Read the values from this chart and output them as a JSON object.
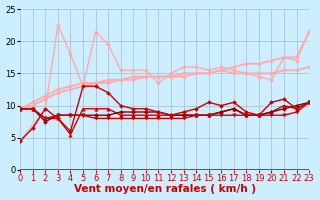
{
  "bg_color": "#cceeff",
  "grid_color": "#aabbcc",
  "xlabel": "Vent moyen/en rafales ( km/h )",
  "xlim": [
    0,
    23
  ],
  "ylim": [
    0,
    25
  ],
  "xticks": [
    0,
    1,
    2,
    3,
    4,
    5,
    6,
    7,
    8,
    9,
    10,
    11,
    12,
    13,
    14,
    15,
    16,
    17,
    18,
    19,
    20,
    21,
    22,
    23
  ],
  "yticks": [
    0,
    5,
    10,
    15,
    20,
    25
  ],
  "series": [
    {
      "x": [
        0,
        1,
        2,
        3,
        4,
        5,
        6,
        7,
        8,
        9,
        10,
        11,
        12,
        13,
        14,
        15,
        16,
        17,
        18,
        19,
        20,
        21,
        22,
        23
      ],
      "y": [
        4.5,
        7.0,
        9.5,
        22.5,
        18.0,
        13.0,
        21.5,
        19.5,
        15.5,
        15.5,
        15.5,
        13.5,
        15.0,
        16.0,
        16.0,
        15.5,
        16.0,
        15.5,
        15.0,
        14.5,
        14.0,
        17.5,
        17.0,
        21.5
      ],
      "color": "#ffaaaa",
      "lw": 1.0,
      "marker": "D",
      "ms": 2.0
    },
    {
      "x": [
        0,
        1,
        2,
        3,
        4,
        5,
        6,
        7,
        8,
        9,
        10,
        11,
        12,
        13,
        14,
        15,
        16,
        17,
        18,
        19,
        20,
        21,
        22,
        23
      ],
      "y": [
        9.5,
        10.5,
        11.5,
        12.5,
        13.0,
        13.5,
        13.5,
        14.0,
        14.0,
        14.5,
        14.5,
        14.5,
        14.5,
        15.0,
        15.0,
        15.0,
        15.5,
        15.0,
        15.0,
        15.0,
        15.0,
        15.5,
        15.5,
        16.0
      ],
      "color": "#ffaaaa",
      "lw": 1.3,
      "marker": "D",
      "ms": 2.0
    },
    {
      "x": [
        0,
        1,
        2,
        3,
        4,
        5,
        6,
        7,
        8,
        9,
        10,
        11,
        12,
        13,
        14,
        15,
        16,
        17,
        18,
        19,
        20,
        21,
        22,
        23
      ],
      "y": [
        9.5,
        10.0,
        11.0,
        12.0,
        12.5,
        13.0,
        13.5,
        13.5,
        14.0,
        14.0,
        14.5,
        14.5,
        14.5,
        14.5,
        15.0,
        15.0,
        15.5,
        16.0,
        16.5,
        16.5,
        17.0,
        17.5,
        17.5,
        21.5
      ],
      "color": "#ffaaaa",
      "lw": 1.3,
      "marker": "D",
      "ms": 2.0
    },
    {
      "x": [
        0,
        1,
        2,
        3,
        4,
        5,
        6,
        7,
        8,
        9,
        10,
        11,
        12,
        13,
        14,
        15,
        16,
        17,
        18,
        19,
        20,
        21,
        22,
        23
      ],
      "y": [
        9.5,
        9.5,
        8.0,
        8.0,
        5.5,
        9.5,
        9.5,
        9.5,
        8.5,
        8.5,
        8.5,
        8.5,
        8.5,
        8.5,
        8.5,
        8.5,
        9.0,
        9.5,
        8.5,
        8.5,
        9.0,
        10.0,
        9.5,
        10.5
      ],
      "color": "#cc0000",
      "lw": 1.0,
      "marker": "^",
      "ms": 2.5
    },
    {
      "x": [
        0,
        1,
        2,
        3,
        4,
        5,
        6,
        7,
        8,
        9,
        10,
        11,
        12,
        13,
        14,
        15,
        16,
        17,
        18,
        19,
        20,
        21,
        22,
        23
      ],
      "y": [
        9.5,
        9.5,
        7.5,
        8.5,
        8.5,
        8.5,
        8.5,
        8.5,
        9.0,
        9.0,
        9.0,
        9.0,
        8.5,
        8.5,
        8.5,
        8.5,
        9.0,
        9.5,
        8.5,
        8.5,
        9.0,
        9.5,
        10.0,
        10.5
      ],
      "color": "#880000",
      "lw": 1.0,
      "marker": "P",
      "ms": 2.5
    },
    {
      "x": [
        0,
        1,
        2,
        3,
        4,
        5,
        6,
        7,
        8,
        9,
        10,
        11,
        12,
        13,
        14,
        15,
        16,
        17,
        18,
        19,
        20,
        21,
        22,
        23
      ],
      "y": [
        9.5,
        9.5,
        8.0,
        8.5,
        8.5,
        8.5,
        8.0,
        8.0,
        8.0,
        8.0,
        8.0,
        8.0,
        8.0,
        8.0,
        8.5,
        8.5,
        8.5,
        8.5,
        8.5,
        8.5,
        8.5,
        8.5,
        9.0,
        10.5
      ],
      "color": "#cc0000",
      "lw": 1.0,
      "marker": "v",
      "ms": 2.5
    },
    {
      "x": [
        0,
        1,
        2,
        3,
        4,
        5,
        6,
        7,
        8,
        9,
        10,
        11,
        12,
        13,
        14,
        15,
        16,
        17,
        18,
        19,
        20,
        21,
        22,
        23
      ],
      "y": [
        4.5,
        6.5,
        9.5,
        8.0,
        6.0,
        13.0,
        13.0,
        12.0,
        10.0,
        9.5,
        9.5,
        9.0,
        8.5,
        9.0,
        9.5,
        10.5,
        10.0,
        10.5,
        9.0,
        8.5,
        10.5,
        11.0,
        9.5,
        10.5
      ],
      "color": "#cc0000",
      "lw": 1.0,
      "marker": "D",
      "ms": 2.0
    }
  ],
  "xlabel_color": "#cc0000",
  "xlabel_fontsize": 7.5,
  "tick_fontsize": 6,
  "arrow_color": "#cc0000"
}
